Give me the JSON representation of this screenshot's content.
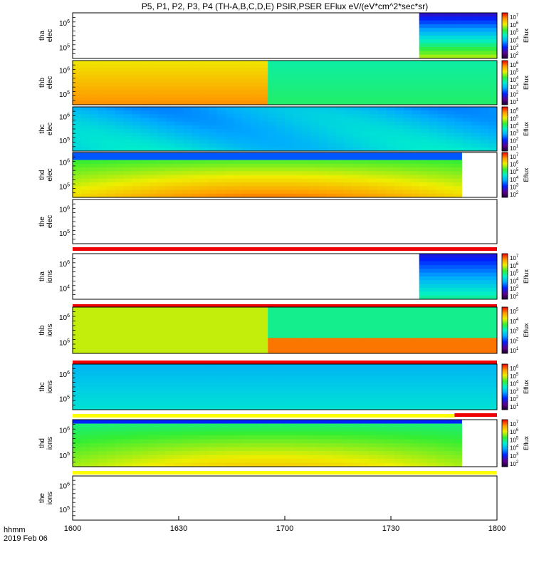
{
  "title": "P5, P1, P2, P3, P4 (TH-A,B,C,D,E) PSIR,PSER EFlux eV/(eV*cm^2*sec*sr)",
  "xaxis": {
    "label_line1": "hhmm",
    "label_line2": "2019 Feb 06",
    "tick_labels": [
      "1600",
      "1630",
      "1700",
      "1730",
      "1800"
    ]
  },
  "colorbar_label": "Eflux",
  "chart_data": {
    "type": "heatmap",
    "x_range": [
      "16:00",
      "18:00"
    ],
    "panels": [
      {
        "probe_line1": "tha",
        "probe_line2": "elec",
        "ytick_labels": [
          "10^6",
          "10^5"
        ],
        "colorbar_ticks": [
          "10^7",
          "10^6",
          "10^5",
          "10^4",
          "10^3",
          "10^2"
        ],
        "data_coverage": {
          "start": "17:38",
          "end": "18:00"
        },
        "status_bar": null
      },
      {
        "probe_line1": "thb",
        "probe_line2": "elec",
        "ytick_labels": [
          "10^6",
          "10^5"
        ],
        "colorbar_ticks": [
          "10^6",
          "10^5",
          "10^4",
          "10^3",
          "10^2",
          "10^1"
        ],
        "data_coverage": {
          "start": "16:00",
          "end": "18:00"
        },
        "status_bar": null
      },
      {
        "probe_line1": "thc",
        "probe_line2": "elec",
        "ytick_labels": [
          "10^6",
          "10^5"
        ],
        "colorbar_ticks": [
          "10^6",
          "10^5",
          "10^4",
          "10^3",
          "10^2",
          "10^1"
        ],
        "data_coverage": {
          "start": "16:00",
          "end": "18:00"
        },
        "status_bar": null
      },
      {
        "probe_line1": "thd",
        "probe_line2": "elec",
        "ytick_labels": [
          "10^6",
          "10^5"
        ],
        "colorbar_ticks": [
          "10^7",
          "10^6",
          "10^5",
          "10^4",
          "10^3",
          "10^2"
        ],
        "data_coverage": {
          "start": "16:00",
          "end": "17:50"
        },
        "status_bar": null
      },
      {
        "probe_line1": "the",
        "probe_line2": "elec",
        "ytick_labels": [
          "10^6",
          "10^5"
        ],
        "colorbar_ticks": [],
        "data_coverage": null,
        "status_bar": "red"
      },
      {
        "probe_line1": "tha",
        "probe_line2": "ions",
        "ytick_labels": [
          "10^6",
          "10^4"
        ],
        "colorbar_ticks": [
          "10^7",
          "10^6",
          "10^5",
          "10^4",
          "10^3",
          "10^2"
        ],
        "data_coverage": {
          "start": "17:38",
          "end": "18:00"
        },
        "status_bar": "red"
      },
      {
        "probe_line1": "thb",
        "probe_line2": "ions",
        "ytick_labels": [
          "10^6",
          "10^5"
        ],
        "colorbar_ticks": [
          "10^5",
          "10^4",
          "10^3",
          "10^2",
          "10^1"
        ],
        "data_coverage": {
          "start": "16:00",
          "end": "18:00"
        },
        "status_bar": "red"
      },
      {
        "probe_line1": "thc",
        "probe_line2": "ions",
        "ytick_labels": [
          "10^6",
          "10^5"
        ],
        "colorbar_ticks": [
          "10^6",
          "10^5",
          "10^4",
          "10^3",
          "10^2",
          "10^1"
        ],
        "data_coverage": {
          "start": "16:00",
          "end": "18:00"
        },
        "status_bar": "yellow/red"
      },
      {
        "probe_line1": "thd",
        "probe_line2": "ions",
        "ytick_labels": [
          "10^6",
          "10^5"
        ],
        "colorbar_ticks": [
          "10^7",
          "10^6",
          "10^5",
          "10^4",
          "10^3",
          "10^2"
        ],
        "data_coverage": {
          "start": "16:00",
          "end": "17:50"
        },
        "status_bar": "yellow"
      },
      {
        "probe_line1": "the",
        "probe_line2": "ions",
        "ytick_labels": [
          "10^6",
          "10^5"
        ],
        "colorbar_ticks": [],
        "data_coverage": null,
        "status_bar": null
      }
    ]
  }
}
